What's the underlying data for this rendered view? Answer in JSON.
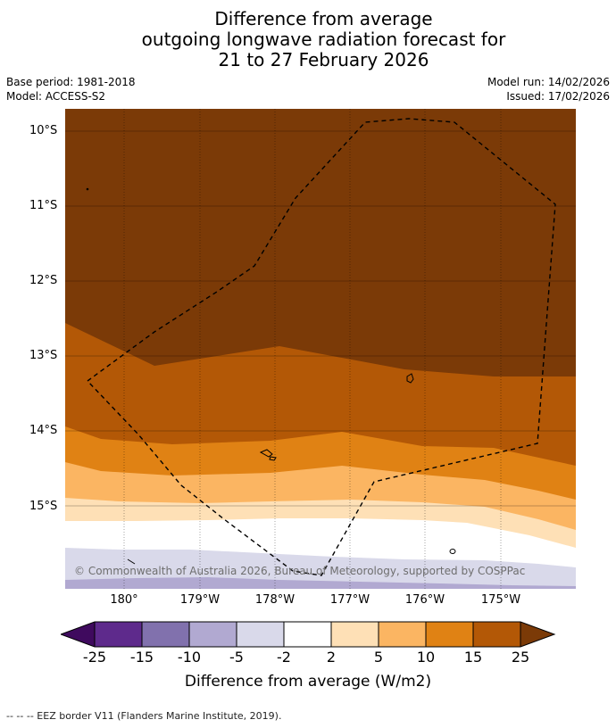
{
  "title": {
    "line1": "Difference from average",
    "line2": "outgoing longwave radiation forecast for",
    "line3": "21 to 27 February 2026"
  },
  "info": {
    "base_period": "Base period: 1981-2018",
    "model": "Model: ACCESS-S2",
    "model_run": "Model run: 14/02/2026",
    "issued": "Issued: 17/02/2026"
  },
  "map": {
    "latitude_labels": [
      "10°S",
      "11°S",
      "12°S",
      "13°S",
      "14°S",
      "15°S"
    ],
    "longitude_labels": [
      "180°",
      "179°W",
      "178°W",
      "177°W",
      "176°W",
      "175°W"
    ],
    "copyright": "© Commonwealth of Australia 2026, Bureau of Meteorology, supported by COSPPac",
    "eez_legend": "--  --  -- EEZ border V11 (Flanders Marine Institute, 2019)."
  },
  "colorbar": {
    "ticks": [
      "-25",
      "-15",
      "-10",
      "-5",
      "-2",
      "2",
      "5",
      "10",
      "15",
      "25"
    ],
    "label": "Difference from average (W/m2)",
    "colors": {
      "below_-25": "#3f0a5e",
      "-25_-15": "#5e2a8c",
      "-15_-10": "#8171ad",
      "-10_-5": "#b1a9d1",
      "-5_-2": "#d9d9ea",
      "-2_2": "#ffffff",
      "2_5": "#fee0b6",
      "5_10": "#fbb562",
      "10_15": "#e08214",
      "15_25": "#b35806",
      "above_25": "#7b3a07"
    }
  }
}
